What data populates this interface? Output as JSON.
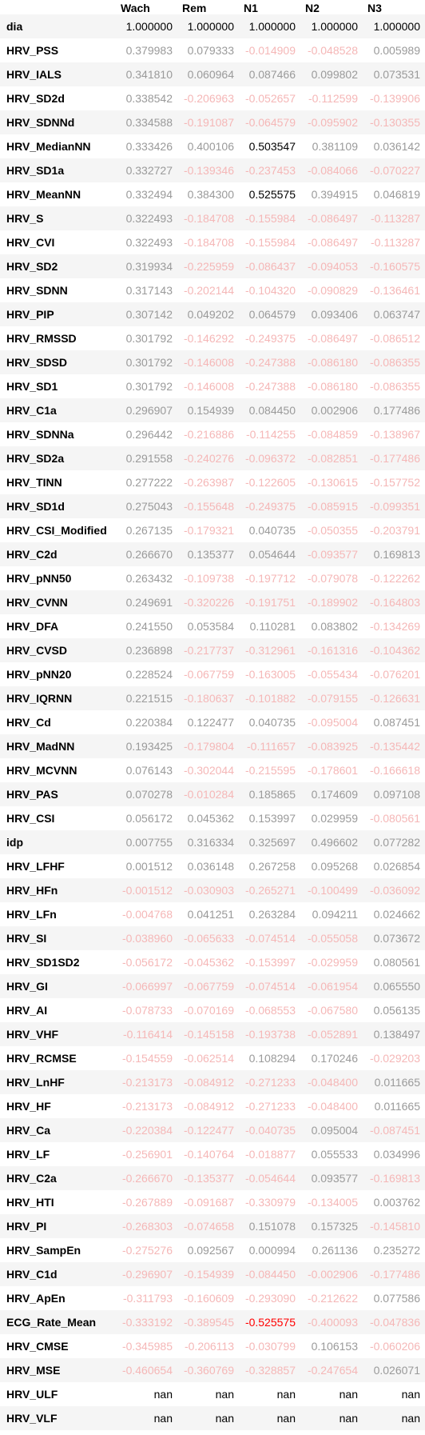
{
  "columns": [
    "",
    "Wach",
    "Rem",
    "N1",
    "N2",
    "N3"
  ],
  "rows": [
    {
      "label": "dia",
      "values": [
        "1.000000",
        "1.000000",
        "1.000000",
        "1.000000",
        "1.000000"
      ],
      "colors": [
        "#000000",
        "#000000",
        "#000000",
        "#000000",
        "#000000"
      ]
    },
    {
      "label": "HRV_PSS",
      "values": [
        "0.379983",
        "0.079333",
        "-0.014909",
        "-0.048528",
        "0.005989"
      ],
      "colors": [
        "#9a9a9a",
        "#9a9a9a",
        "#f5b7b7",
        "#f5b7b7",
        "#9a9a9a"
      ]
    },
    {
      "label": "HRV_IALS",
      "values": [
        "0.341810",
        "0.060964",
        "0.087466",
        "0.099802",
        "0.073531"
      ],
      "colors": [
        "#9a9a9a",
        "#9a9a9a",
        "#9a9a9a",
        "#9a9a9a",
        "#9a9a9a"
      ]
    },
    {
      "label": "HRV_SD2d",
      "values": [
        "0.338542",
        "-0.206963",
        "-0.052657",
        "-0.112599",
        "-0.139906"
      ],
      "colors": [
        "#9a9a9a",
        "#f5b7b7",
        "#f5b7b7",
        "#f5b7b7",
        "#f5b7b7"
      ]
    },
    {
      "label": "HRV_SDNNd",
      "values": [
        "0.334588",
        "-0.191087",
        "-0.064579",
        "-0.095902",
        "-0.130355"
      ],
      "colors": [
        "#9a9a9a",
        "#f5b7b7",
        "#f5b7b7",
        "#f5b7b7",
        "#f5b7b7"
      ]
    },
    {
      "label": "HRV_MedianNN",
      "values": [
        "0.333426",
        "0.400106",
        "0.503547",
        "0.381109",
        "0.036142"
      ],
      "colors": [
        "#9a9a9a",
        "#9a9a9a",
        "#000000",
        "#9a9a9a",
        "#9a9a9a"
      ]
    },
    {
      "label": "HRV_SD1a",
      "values": [
        "0.332727",
        "-0.139346",
        "-0.237453",
        "-0.084066",
        "-0.070227"
      ],
      "colors": [
        "#9a9a9a",
        "#f5b7b7",
        "#f5b7b7",
        "#f5b7b7",
        "#f5b7b7"
      ]
    },
    {
      "label": "HRV_MeanNN",
      "values": [
        "0.332494",
        "0.384300",
        "0.525575",
        "0.394915",
        "0.046819"
      ],
      "colors": [
        "#9a9a9a",
        "#9a9a9a",
        "#000000",
        "#9a9a9a",
        "#9a9a9a"
      ]
    },
    {
      "label": "HRV_S",
      "values": [
        "0.322493",
        "-0.184708",
        "-0.155984",
        "-0.086497",
        "-0.113287"
      ],
      "colors": [
        "#9a9a9a",
        "#f5b7b7",
        "#f5b7b7",
        "#f5b7b7",
        "#f5b7b7"
      ]
    },
    {
      "label": "HRV_CVI",
      "values": [
        "0.322493",
        "-0.184708",
        "-0.155984",
        "-0.086497",
        "-0.113287"
      ],
      "colors": [
        "#9a9a9a",
        "#f5b7b7",
        "#f5b7b7",
        "#f5b7b7",
        "#f5b7b7"
      ]
    },
    {
      "label": "HRV_SD2",
      "values": [
        "0.319934",
        "-0.225959",
        "-0.086437",
        "-0.094053",
        "-0.160575"
      ],
      "colors": [
        "#9a9a9a",
        "#f5b7b7",
        "#f5b7b7",
        "#f5b7b7",
        "#f5b7b7"
      ]
    },
    {
      "label": "HRV_SDNN",
      "values": [
        "0.317143",
        "-0.202144",
        "-0.104320",
        "-0.090829",
        "-0.136461"
      ],
      "colors": [
        "#9a9a9a",
        "#f5b7b7",
        "#f5b7b7",
        "#f5b7b7",
        "#f5b7b7"
      ]
    },
    {
      "label": "HRV_PIP",
      "values": [
        "0.307142",
        "0.049202",
        "0.064579",
        "0.093406",
        "0.063747"
      ],
      "colors": [
        "#9a9a9a",
        "#9a9a9a",
        "#9a9a9a",
        "#9a9a9a",
        "#9a9a9a"
      ]
    },
    {
      "label": "HRV_RMSSD",
      "values": [
        "0.301792",
        "-0.146292",
        "-0.249375",
        "-0.086497",
        "-0.086512"
      ],
      "colors": [
        "#9a9a9a",
        "#f5b7b7",
        "#f5b7b7",
        "#f5b7b7",
        "#f5b7b7"
      ]
    },
    {
      "label": "HRV_SDSD",
      "values": [
        "0.301792",
        "-0.146008",
        "-0.247388",
        "-0.086180",
        "-0.086355"
      ],
      "colors": [
        "#9a9a9a",
        "#f5b7b7",
        "#f5b7b7",
        "#f5b7b7",
        "#f5b7b7"
      ]
    },
    {
      "label": "HRV_SD1",
      "values": [
        "0.301792",
        "-0.146008",
        "-0.247388",
        "-0.086180",
        "-0.086355"
      ],
      "colors": [
        "#9a9a9a",
        "#f5b7b7",
        "#f5b7b7",
        "#f5b7b7",
        "#f5b7b7"
      ]
    },
    {
      "label": "HRV_C1a",
      "values": [
        "0.296907",
        "0.154939",
        "0.084450",
        "0.002906",
        "0.177486"
      ],
      "colors": [
        "#9a9a9a",
        "#9a9a9a",
        "#9a9a9a",
        "#9a9a9a",
        "#9a9a9a"
      ]
    },
    {
      "label": "HRV_SDNNa",
      "values": [
        "0.296442",
        "-0.216886",
        "-0.114255",
        "-0.084859",
        "-0.138967"
      ],
      "colors": [
        "#9a9a9a",
        "#f5b7b7",
        "#f5b7b7",
        "#f5b7b7",
        "#f5b7b7"
      ]
    },
    {
      "label": "HRV_SD2a",
      "values": [
        "0.291558",
        "-0.240276",
        "-0.096372",
        "-0.082851",
        "-0.177486"
      ],
      "colors": [
        "#9a9a9a",
        "#f5b7b7",
        "#f5b7b7",
        "#f5b7b7",
        "#f5b7b7"
      ]
    },
    {
      "label": "HRV_TINN",
      "values": [
        "0.277222",
        "-0.263987",
        "-0.122605",
        "-0.130615",
        "-0.157752"
      ],
      "colors": [
        "#9a9a9a",
        "#f5b7b7",
        "#f5b7b7",
        "#f5b7b7",
        "#f5b7b7"
      ]
    },
    {
      "label": "HRV_SD1d",
      "values": [
        "0.275043",
        "-0.155648",
        "-0.249375",
        "-0.085915",
        "-0.099351"
      ],
      "colors": [
        "#9a9a9a",
        "#f5b7b7",
        "#f5b7b7",
        "#f5b7b7",
        "#f5b7b7"
      ]
    },
    {
      "label": "HRV_CSI_Modified",
      "values": [
        "0.267135",
        "-0.179321",
        "0.040735",
        "-0.050355",
        "-0.203791"
      ],
      "colors": [
        "#9a9a9a",
        "#f5b7b7",
        "#9a9a9a",
        "#f5b7b7",
        "#f5b7b7"
      ]
    },
    {
      "label": "HRV_C2d",
      "values": [
        "0.266670",
        "0.135377",
        "0.054644",
        "-0.093577",
        "0.169813"
      ],
      "colors": [
        "#9a9a9a",
        "#9a9a9a",
        "#9a9a9a",
        "#f5b7b7",
        "#9a9a9a"
      ]
    },
    {
      "label": "HRV_pNN50",
      "values": [
        "0.263432",
        "-0.109738",
        "-0.197712",
        "-0.079078",
        "-0.122262"
      ],
      "colors": [
        "#9a9a9a",
        "#f5b7b7",
        "#f5b7b7",
        "#f5b7b7",
        "#f5b7b7"
      ]
    },
    {
      "label": "HRV_CVNN",
      "values": [
        "0.249691",
        "-0.320226",
        "-0.191751",
        "-0.189902",
        "-0.164803"
      ],
      "colors": [
        "#9a9a9a",
        "#f5b7b7",
        "#f5b7b7",
        "#f5b7b7",
        "#f5b7b7"
      ]
    },
    {
      "label": "HRV_DFA",
      "values": [
        "0.241550",
        "0.053584",
        "0.110281",
        "0.083802",
        "-0.134269"
      ],
      "colors": [
        "#9a9a9a",
        "#9a9a9a",
        "#9a9a9a",
        "#9a9a9a",
        "#f5b7b7"
      ]
    },
    {
      "label": "HRV_CVSD",
      "values": [
        "0.236898",
        "-0.217737",
        "-0.312961",
        "-0.161316",
        "-0.104362"
      ],
      "colors": [
        "#9a9a9a",
        "#f5b7b7",
        "#f5b7b7",
        "#f5b7b7",
        "#f5b7b7"
      ]
    },
    {
      "label": "HRV_pNN20",
      "values": [
        "0.228524",
        "-0.067759",
        "-0.163005",
        "-0.055434",
        "-0.076201"
      ],
      "colors": [
        "#9a9a9a",
        "#f5b7b7",
        "#f5b7b7",
        "#f5b7b7",
        "#f5b7b7"
      ]
    },
    {
      "label": "HRV_IQRNN",
      "values": [
        "0.221515",
        "-0.180637",
        "-0.101882",
        "-0.079155",
        "-0.126631"
      ],
      "colors": [
        "#9a9a9a",
        "#f5b7b7",
        "#f5b7b7",
        "#f5b7b7",
        "#f5b7b7"
      ]
    },
    {
      "label": "HRV_Cd",
      "values": [
        "0.220384",
        "0.122477",
        "0.040735",
        "-0.095004",
        "0.087451"
      ],
      "colors": [
        "#9a9a9a",
        "#9a9a9a",
        "#9a9a9a",
        "#f5b7b7",
        "#9a9a9a"
      ]
    },
    {
      "label": "HRV_MadNN",
      "values": [
        "0.193425",
        "-0.179804",
        "-0.111657",
        "-0.083925",
        "-0.135442"
      ],
      "colors": [
        "#9a9a9a",
        "#f5b7b7",
        "#f5b7b7",
        "#f5b7b7",
        "#f5b7b7"
      ]
    },
    {
      "label": "HRV_MCVNN",
      "values": [
        "0.076143",
        "-0.302044",
        "-0.215595",
        "-0.178601",
        "-0.166618"
      ],
      "colors": [
        "#9a9a9a",
        "#f5b7b7",
        "#f5b7b7",
        "#f5b7b7",
        "#f5b7b7"
      ]
    },
    {
      "label": "HRV_PAS",
      "values": [
        "0.070278",
        "-0.010284",
        "0.185865",
        "0.174609",
        "0.097108"
      ],
      "colors": [
        "#9a9a9a",
        "#f5b7b7",
        "#9a9a9a",
        "#9a9a9a",
        "#9a9a9a"
      ]
    },
    {
      "label": "HRV_CSI",
      "values": [
        "0.056172",
        "0.045362",
        "0.153997",
        "0.029959",
        "-0.080561"
      ],
      "colors": [
        "#9a9a9a",
        "#9a9a9a",
        "#9a9a9a",
        "#9a9a9a",
        "#f5b7b7"
      ]
    },
    {
      "label": "idp",
      "values": [
        "0.007755",
        "0.316334",
        "0.325697",
        "0.496602",
        "0.077282"
      ],
      "colors": [
        "#9a9a9a",
        "#9a9a9a",
        "#9a9a9a",
        "#9a9a9a",
        "#9a9a9a"
      ]
    },
    {
      "label": "HRV_LFHF",
      "values": [
        "0.001512",
        "0.036148",
        "0.267258",
        "0.095268",
        "0.026854"
      ],
      "colors": [
        "#9a9a9a",
        "#9a9a9a",
        "#9a9a9a",
        "#9a9a9a",
        "#9a9a9a"
      ]
    },
    {
      "label": "HRV_HFn",
      "values": [
        "-0.001512",
        "-0.030903",
        "-0.265271",
        "-0.100499",
        "-0.036092"
      ],
      "colors": [
        "#f5b7b7",
        "#f5b7b7",
        "#f5b7b7",
        "#f5b7b7",
        "#f5b7b7"
      ]
    },
    {
      "label": "HRV_LFn",
      "values": [
        "-0.004768",
        "0.041251",
        "0.263284",
        "0.094211",
        "0.024662"
      ],
      "colors": [
        "#f5b7b7",
        "#9a9a9a",
        "#9a9a9a",
        "#9a9a9a",
        "#9a9a9a"
      ]
    },
    {
      "label": "HRV_SI",
      "values": [
        "-0.038960",
        "-0.065633",
        "-0.074514",
        "-0.055058",
        "0.073672"
      ],
      "colors": [
        "#f5b7b7",
        "#f5b7b7",
        "#f5b7b7",
        "#f5b7b7",
        "#9a9a9a"
      ]
    },
    {
      "label": "HRV_SD1SD2",
      "values": [
        "-0.056172",
        "-0.045362",
        "-0.153997",
        "-0.029959",
        "0.080561"
      ],
      "colors": [
        "#f5b7b7",
        "#f5b7b7",
        "#f5b7b7",
        "#f5b7b7",
        "#9a9a9a"
      ]
    },
    {
      "label": "HRV_GI",
      "values": [
        "-0.066997",
        "-0.067759",
        "-0.074514",
        "-0.061954",
        "0.065550"
      ],
      "colors": [
        "#f5b7b7",
        "#f5b7b7",
        "#f5b7b7",
        "#f5b7b7",
        "#9a9a9a"
      ]
    },
    {
      "label": "HRV_AI",
      "values": [
        "-0.078733",
        "-0.070169",
        "-0.068553",
        "-0.067580",
        "0.056135"
      ],
      "colors": [
        "#f5b7b7",
        "#f5b7b7",
        "#f5b7b7",
        "#f5b7b7",
        "#9a9a9a"
      ]
    },
    {
      "label": "HRV_VHF",
      "values": [
        "-0.116414",
        "-0.145158",
        "-0.193738",
        "-0.052891",
        "0.138497"
      ],
      "colors": [
        "#f5b7b7",
        "#f5b7b7",
        "#f5b7b7",
        "#f5b7b7",
        "#9a9a9a"
      ]
    },
    {
      "label": "HRV_RCMSE",
      "values": [
        "-0.154559",
        "-0.062514",
        "0.108294",
        "0.170246",
        "-0.029203"
      ],
      "colors": [
        "#f5b7b7",
        "#f5b7b7",
        "#9a9a9a",
        "#9a9a9a",
        "#f5b7b7"
      ]
    },
    {
      "label": "HRV_LnHF",
      "values": [
        "-0.213173",
        "-0.084912",
        "-0.271233",
        "-0.048400",
        "0.011665"
      ],
      "colors": [
        "#f5b7b7",
        "#f5b7b7",
        "#f5b7b7",
        "#f5b7b7",
        "#9a9a9a"
      ]
    },
    {
      "label": "HRV_HF",
      "values": [
        "-0.213173",
        "-0.084912",
        "-0.271233",
        "-0.048400",
        "0.011665"
      ],
      "colors": [
        "#f5b7b7",
        "#f5b7b7",
        "#f5b7b7",
        "#f5b7b7",
        "#9a9a9a"
      ]
    },
    {
      "label": "HRV_Ca",
      "values": [
        "-0.220384",
        "-0.122477",
        "-0.040735",
        "0.095004",
        "-0.087451"
      ],
      "colors": [
        "#f5b7b7",
        "#f5b7b7",
        "#f5b7b7",
        "#9a9a9a",
        "#f5b7b7"
      ]
    },
    {
      "label": "HRV_LF",
      "values": [
        "-0.256901",
        "-0.140764",
        "-0.018877",
        "0.055533",
        "0.034996"
      ],
      "colors": [
        "#f5b7b7",
        "#f5b7b7",
        "#f5b7b7",
        "#9a9a9a",
        "#9a9a9a"
      ]
    },
    {
      "label": "HRV_C2a",
      "values": [
        "-0.266670",
        "-0.135377",
        "-0.054644",
        "0.093577",
        "-0.169813"
      ],
      "colors": [
        "#f5b7b7",
        "#f5b7b7",
        "#f5b7b7",
        "#9a9a9a",
        "#f5b7b7"
      ]
    },
    {
      "label": "HRV_HTI",
      "values": [
        "-0.267889",
        "-0.091687",
        "-0.330979",
        "-0.134005",
        "0.003762"
      ],
      "colors": [
        "#f5b7b7",
        "#f5b7b7",
        "#f5b7b7",
        "#f5b7b7",
        "#9a9a9a"
      ]
    },
    {
      "label": "HRV_PI",
      "values": [
        "-0.268303",
        "-0.074658",
        "0.151078",
        "0.157325",
        "-0.145810"
      ],
      "colors": [
        "#f5b7b7",
        "#f5b7b7",
        "#9a9a9a",
        "#9a9a9a",
        "#f5b7b7"
      ]
    },
    {
      "label": "HRV_SampEn",
      "values": [
        "-0.275276",
        "0.092567",
        "0.000994",
        "0.261136",
        "0.235272"
      ],
      "colors": [
        "#f5b7b7",
        "#9a9a9a",
        "#9a9a9a",
        "#9a9a9a",
        "#9a9a9a"
      ]
    },
    {
      "label": "HRV_C1d",
      "values": [
        "-0.296907",
        "-0.154939",
        "-0.084450",
        "-0.002906",
        "-0.177486"
      ],
      "colors": [
        "#f5b7b7",
        "#f5b7b7",
        "#f5b7b7",
        "#f5b7b7",
        "#f5b7b7"
      ]
    },
    {
      "label": "HRV_ApEn",
      "values": [
        "-0.311793",
        "-0.160609",
        "-0.293090",
        "-0.212622",
        "0.077586"
      ],
      "colors": [
        "#f5b7b7",
        "#f5b7b7",
        "#f5b7b7",
        "#f5b7b7",
        "#9a9a9a"
      ]
    },
    {
      "label": "ECG_Rate_Mean",
      "values": [
        "-0.333192",
        "-0.389545",
        "-0.525575",
        "-0.400093",
        "-0.047836"
      ],
      "colors": [
        "#f5b7b7",
        "#f5b7b7",
        "#ff0000",
        "#f5b7b7",
        "#f5b7b7"
      ]
    },
    {
      "label": "HRV_CMSE",
      "values": [
        "-0.345985",
        "-0.206113",
        "-0.030799",
        "0.106153",
        "-0.060206"
      ],
      "colors": [
        "#f5b7b7",
        "#f5b7b7",
        "#f5b7b7",
        "#9a9a9a",
        "#f5b7b7"
      ]
    },
    {
      "label": "HRV_MSE",
      "values": [
        "-0.460654",
        "-0.360769",
        "-0.328857",
        "-0.247654",
        "0.026071"
      ],
      "colors": [
        "#f5b7b7",
        "#f5b7b7",
        "#f5b7b7",
        "#f5b7b7",
        "#9a9a9a"
      ]
    },
    {
      "label": "HRV_ULF",
      "values": [
        "nan",
        "nan",
        "nan",
        "nan",
        "nan"
      ],
      "colors": [
        "#000000",
        "#000000",
        "#000000",
        "#000000",
        "#000000"
      ]
    },
    {
      "label": "HRV_VLF",
      "values": [
        "nan",
        "nan",
        "nan",
        "nan",
        "nan"
      ],
      "colors": [
        "#000000",
        "#000000",
        "#000000",
        "#000000",
        "#000000"
      ]
    }
  ]
}
